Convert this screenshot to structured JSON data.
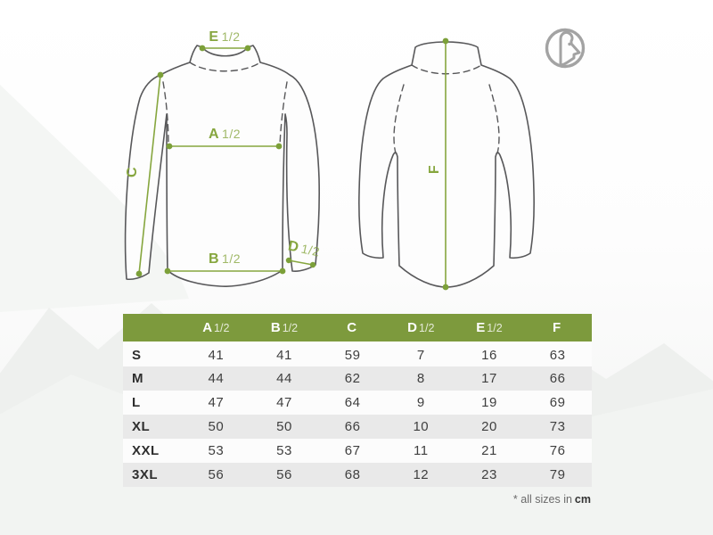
{
  "measurements": {
    "e": {
      "letter": "E",
      "fraction": "1/2"
    },
    "a": {
      "letter": "A",
      "fraction": "1/2"
    },
    "b": {
      "letter": "B",
      "fraction": "1/2"
    },
    "c": {
      "letter": "C"
    },
    "d": {
      "letter": "D",
      "fraction": "1/2"
    },
    "f": {
      "letter": "F"
    }
  },
  "table": {
    "header": [
      {
        "letter": "A",
        "fraction": "1/2"
      },
      {
        "letter": "B",
        "fraction": "1/2"
      },
      {
        "letter": "C",
        "fraction": ""
      },
      {
        "letter": "D",
        "fraction": "1/2"
      },
      {
        "letter": "E",
        "fraction": "1/2"
      },
      {
        "letter": "F",
        "fraction": ""
      }
    ],
    "rows": [
      {
        "size": "S",
        "values": [
          "41",
          "41",
          "59",
          "7",
          "16",
          "63"
        ]
      },
      {
        "size": "M",
        "values": [
          "44",
          "44",
          "62",
          "8",
          "17",
          "66"
        ]
      },
      {
        "size": "L",
        "values": [
          "47",
          "47",
          "64",
          "9",
          "19",
          "69"
        ]
      },
      {
        "size": "XL",
        "values": [
          "50",
          "50",
          "66",
          "10",
          "20",
          "73"
        ]
      },
      {
        "size": "XXL",
        "values": [
          "53",
          "53",
          "67",
          "11",
          "21",
          "76"
        ]
      },
      {
        "size": "3XL",
        "values": [
          "56",
          "56",
          "68",
          "12",
          "23",
          "79"
        ]
      }
    ]
  },
  "footnote": {
    "prefix": "* all sizes in",
    "unit": "cm"
  },
  "logo": {
    "name": "ibex in circle"
  },
  "colors": {
    "accent_green": "#7d9a3d",
    "line_green": "#86a63e",
    "outline_gray": "#58585a",
    "row_alt": "#e9e9e9",
    "logo_gray": "#a3a3a3"
  }
}
